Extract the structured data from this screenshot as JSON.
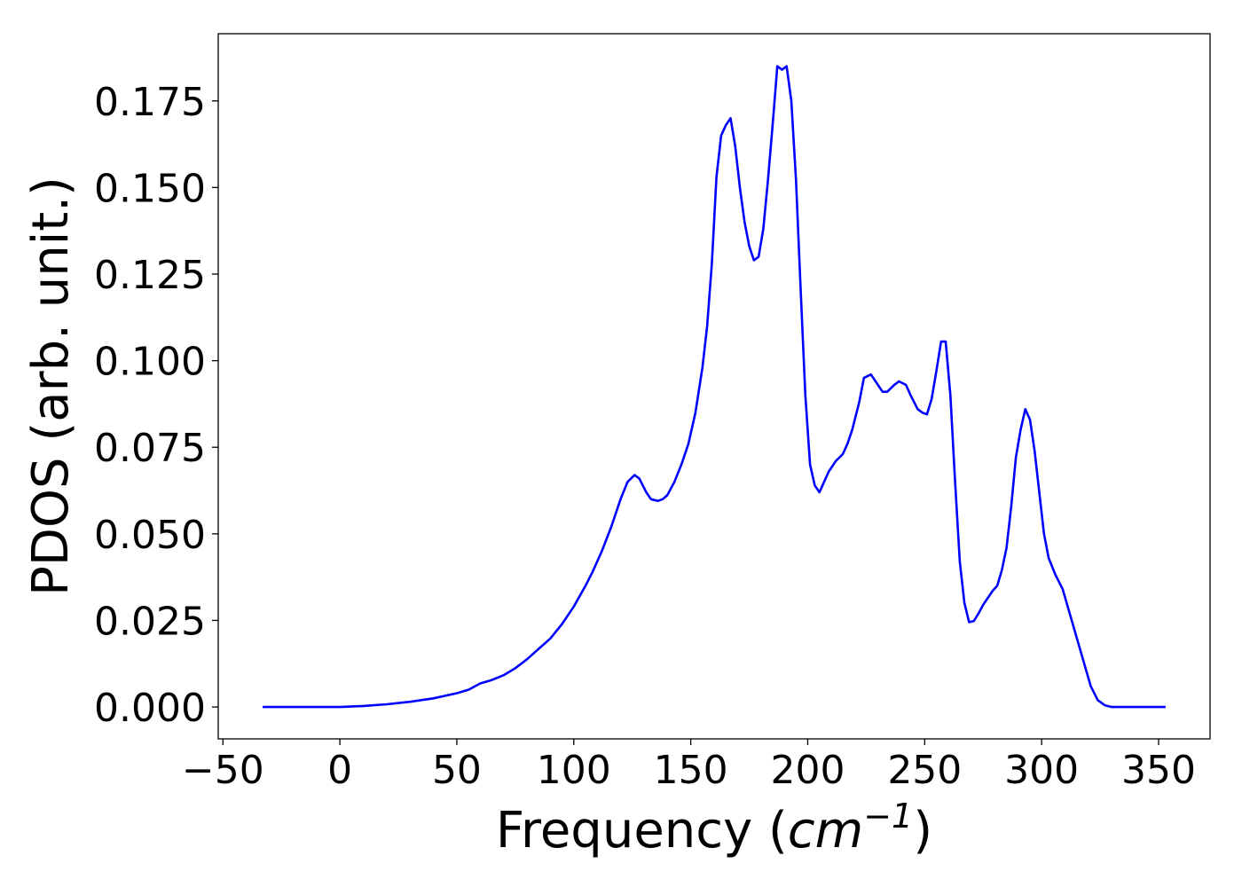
{
  "chart_data": {
    "type": "line",
    "title": "",
    "xlabel": "Frequency",
    "xlabel_unit_base": "cm",
    "xlabel_unit_exp": "−1",
    "ylabel": "PDOS (arb. unit.)",
    "xlim": [
      -52,
      372
    ],
    "ylim": [
      -0.0092,
      0.1944
    ],
    "x_ticks": [
      -50,
      0,
      50,
      100,
      150,
      200,
      250,
      300,
      350
    ],
    "x_tick_labels": [
      "−50",
      "0",
      "50",
      "100",
      "150",
      "200",
      "250",
      "300",
      "350"
    ],
    "y_ticks": [
      0,
      0.025,
      0.05,
      0.075,
      0.1,
      0.125,
      0.15,
      0.175
    ],
    "y_tick_labels": [
      "0.000",
      "0.025",
      "0.050",
      "0.075",
      "0.100",
      "0.125",
      "0.150",
      "0.175"
    ],
    "grid": false,
    "legend": "none",
    "series": [
      {
        "color": "#0000ff",
        "x": [
          -33,
          0,
          10,
          20,
          30,
          40,
          50,
          55,
          60,
          65,
          70,
          75,
          80,
          85,
          90,
          95,
          100,
          105,
          108,
          112,
          116,
          120,
          123,
          126,
          128,
          131,
          133,
          136,
          138,
          140,
          143,
          146,
          149,
          152,
          155,
          157,
          159,
          161,
          163,
          165,
          167,
          169,
          171,
          173,
          175,
          177,
          179,
          181,
          183,
          185,
          187,
          189,
          191,
          193,
          195,
          197,
          199,
          201,
          203,
          205,
          207,
          209,
          212,
          215,
          217,
          219,
          222,
          224,
          227,
          230,
          232,
          234,
          237,
          239,
          242,
          244,
          247,
          249,
          251,
          253,
          255,
          257,
          259,
          261,
          263,
          265,
          267,
          269,
          271,
          273,
          275,
          277,
          279,
          281,
          283,
          285,
          287,
          289,
          291,
          293,
          295,
          297,
          299,
          301,
          303,
          306,
          309,
          312,
          315,
          318,
          321,
          324,
          327,
          330,
          340,
          353
        ],
        "y": [
          0,
          0,
          0.0003,
          0.0008,
          0.0015,
          0.0025,
          0.004,
          0.005,
          0.0068,
          0.0078,
          0.0092,
          0.0112,
          0.0138,
          0.0168,
          0.0198,
          0.024,
          0.029,
          0.035,
          0.039,
          0.045,
          0.052,
          0.06,
          0.065,
          0.067,
          0.066,
          0.062,
          0.06,
          0.0595,
          0.06,
          0.0612,
          0.065,
          0.07,
          0.076,
          0.085,
          0.098,
          0.11,
          0.128,
          0.153,
          0.165,
          0.168,
          0.17,
          0.162,
          0.15,
          0.14,
          0.133,
          0.129,
          0.13,
          0.138,
          0.152,
          0.168,
          0.185,
          0.184,
          0.185,
          0.175,
          0.152,
          0.12,
          0.09,
          0.07,
          0.064,
          0.062,
          0.065,
          0.068,
          0.071,
          0.073,
          0.076,
          0.08,
          0.088,
          0.095,
          0.096,
          0.093,
          0.091,
          0.091,
          0.093,
          0.094,
          0.093,
          0.09,
          0.086,
          0.085,
          0.0845,
          0.089,
          0.097,
          0.1055,
          0.1055,
          0.09,
          0.065,
          0.042,
          0.03,
          0.0245,
          0.0248,
          0.027,
          0.0295,
          0.0315,
          0.0335,
          0.035,
          0.0395,
          0.046,
          0.058,
          0.072,
          0.08,
          0.086,
          0.083,
          0.074,
          0.062,
          0.05,
          0.043,
          0.038,
          0.034,
          0.027,
          0.02,
          0.013,
          0.006,
          0.002,
          0.0005,
          0,
          0,
          0
        ]
      }
    ]
  }
}
